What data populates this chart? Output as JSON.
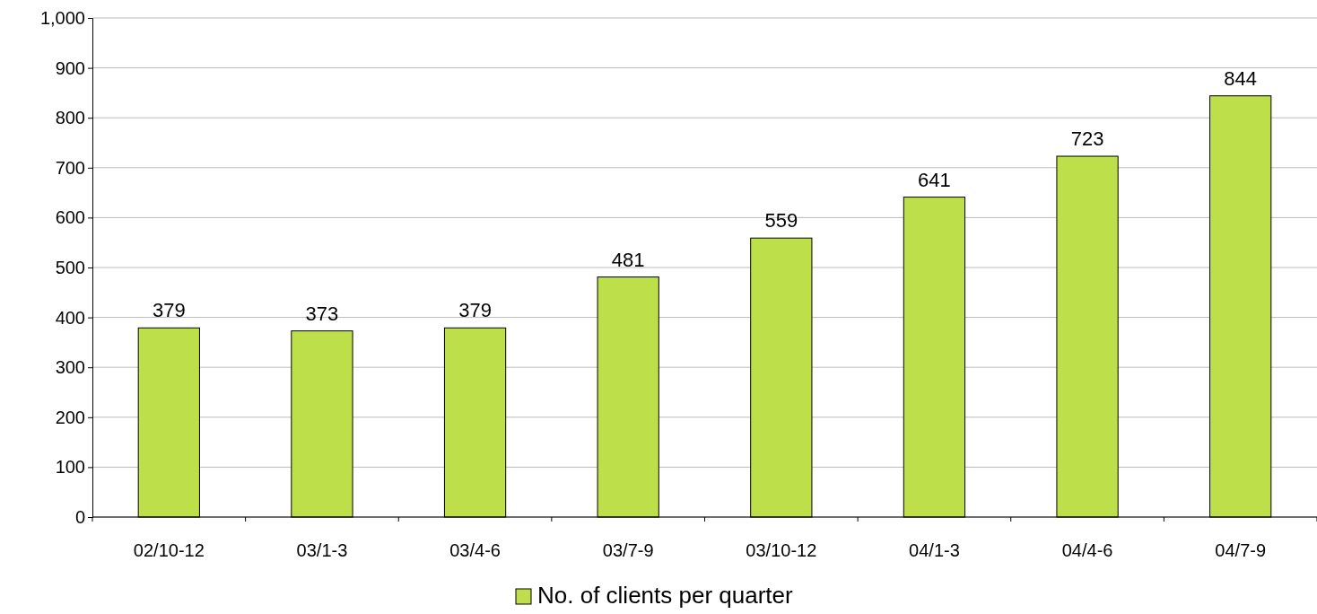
{
  "chart_data": {
    "type": "bar",
    "categories": [
      "02/10-12",
      "03/1-3",
      "03/4-6",
      "03/7-9",
      "03/10-12",
      "04/1-3",
      "04/4-6",
      "04/7-9"
    ],
    "series": [
      {
        "name": "No. of clients per quarter",
        "color": "#bde04a",
        "values": [
          379,
          373,
          379,
          481,
          559,
          641,
          723,
          844
        ]
      }
    ],
    "ylim": [
      0,
      1000
    ],
    "yticks": [
      0,
      100,
      200,
      300,
      400,
      500,
      600,
      700,
      800,
      900,
      {
        "value": 1000,
        "label": "1,000"
      }
    ],
    "grid": "y",
    "legend": "bottom",
    "data_labels": true
  }
}
